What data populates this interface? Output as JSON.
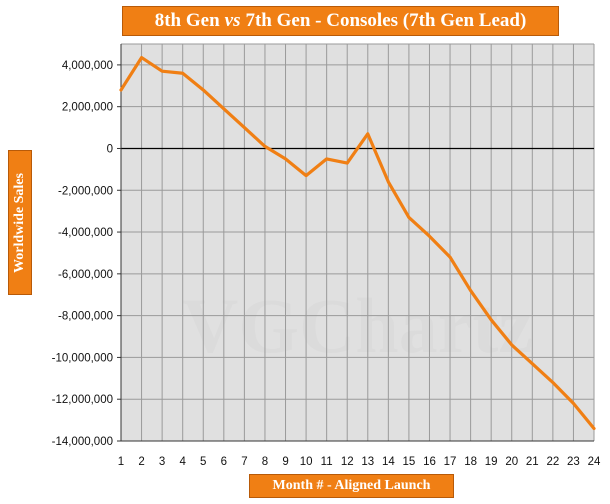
{
  "chart_data": {
    "type": "line",
    "title_parts": [
      "8th Gen",
      "vs",
      "7th Gen - Consoles (7th Gen Lead)"
    ],
    "xlabel": "Month # - Aligned Launch",
    "ylabel": "Worldwide Sales",
    "watermark": "VGChartz",
    "x": [
      1,
      2,
      3,
      4,
      5,
      6,
      7,
      8,
      9,
      10,
      11,
      12,
      13,
      14,
      15,
      16,
      17,
      18,
      19,
      20,
      21,
      22,
      23,
      24
    ],
    "series": [
      {
        "values": [
          2800000,
          4350000,
          3700000,
          3600000,
          2800000,
          1900000,
          1000000,
          100000,
          -500000,
          -1300000,
          -500000,
          -700000,
          700000,
          -1600000,
          -3300000,
          -4200000,
          -5200000,
          -6800000,
          -8200000,
          -9400000,
          -10300000,
          -11200000,
          -12200000,
          -13400000
        ],
        "color": "#f07f14"
      }
    ],
    "ylim": [
      -14000000,
      5000000
    ],
    "xlim": [
      1,
      24
    ],
    "y_ticks": [
      {
        "v": 4000000,
        "label": "4,000,000"
      },
      {
        "v": 2000000,
        "label": "2,000,000"
      },
      {
        "v": 0,
        "label": "0"
      },
      {
        "v": -2000000,
        "label": "-2,000,000"
      },
      {
        "v": -4000000,
        "label": "-4,000,000"
      },
      {
        "v": -6000000,
        "label": "-6,000,000"
      },
      {
        "v": -8000000,
        "label": "-8,000,000"
      },
      {
        "v": -10000000,
        "label": "-10,000,000"
      },
      {
        "v": -12000000,
        "label": "-12,000,000"
      },
      {
        "v": -14000000,
        "label": "-14,000,000"
      }
    ],
    "grid": true,
    "legend": "none",
    "colors": {
      "plot_bg": "#e0e0e0",
      "grid": "#9a9a9a",
      "line": "#f07f14",
      "label_box": "#f07f14"
    }
  }
}
